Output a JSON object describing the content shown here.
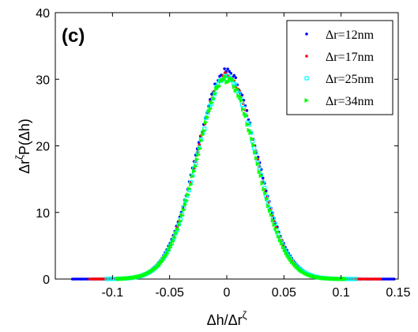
{
  "chart_data": {
    "type": "scatter",
    "panel_label": "(c)",
    "xlabel_base": "Δh/Δr",
    "xlabel_sup": "ζ",
    "ylabel_pre": "Δr",
    "ylabel_sup": "ζ",
    "ylabel_post": "P(Δh)",
    "xlim": [
      -0.15,
      0.15
    ],
    "ylim": [
      0,
      40
    ],
    "xticks": [
      -0.1,
      -0.05,
      0,
      0.05,
      0.1,
      0.15
    ],
    "xtick_labels": [
      "-0.1",
      "-0.05",
      "0",
      "0.05",
      "0.1",
      "0.15"
    ],
    "yticks": [
      0,
      10,
      20,
      30,
      40
    ],
    "ytick_labels": [
      "0",
      "10",
      "20",
      "30",
      "40"
    ],
    "grid": false,
    "legend_position": "top-right",
    "series": [
      {
        "name": "Δr=12nm",
        "color": "#0000ff",
        "marker": "dot",
        "x_range": [
          -0.135,
          0.147
        ],
        "peak": 31.2,
        "center": 0.0,
        "width": 0.0265,
        "x_step": 0.0014
      },
      {
        "name": "Δr=17nm",
        "color": "#ff0000",
        "marker": "dot",
        "x_range": [
          -0.12,
          0.135
        ],
        "peak": 30.6,
        "center": 0.0,
        "width": 0.0262,
        "x_step": 0.0016
      },
      {
        "name": "Δr=25nm",
        "color": "#00ffff",
        "marker": "square",
        "x_range": [
          -0.105,
          0.113
        ],
        "peak": 30.3,
        "center": 0.0,
        "width": 0.026,
        "x_step": 0.0015
      },
      {
        "name": "Δr=34nm",
        "color": "#00ff00",
        "marker": "triangle-right",
        "x_range": [
          -0.095,
          0.105
        ],
        "peak": 30.0,
        "center": 0.0,
        "width": 0.0258,
        "x_step": 0.0013
      }
    ]
  }
}
